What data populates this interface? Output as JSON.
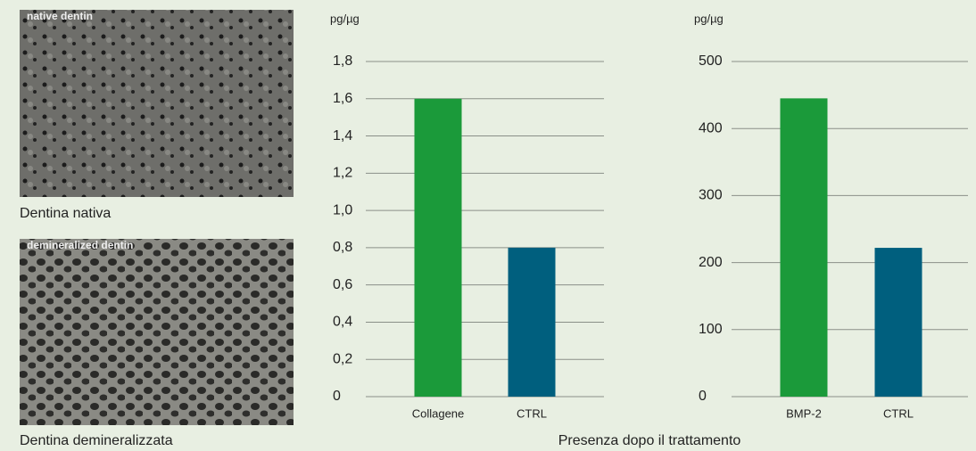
{
  "images": [
    {
      "overlay": "native dentin",
      "caption": "Dentina nativa"
    },
    {
      "overlay": "demineralized dentin",
      "caption": "Dentina demineralizzata"
    }
  ],
  "caption": "Presenza dopo il trattamento",
  "chart_data": [
    {
      "type": "bar",
      "y_label": "pg/µg",
      "categories": [
        "Collagene",
        "CTRL"
      ],
      "values": [
        1.6,
        0.8
      ],
      "colors": [
        "#1b9a3a",
        "#005f7e"
      ],
      "ylim": [
        0,
        1.8
      ],
      "yticks": [
        0,
        {
          "value": 0.2,
          "label": "0,2"
        },
        {
          "value": 0.4,
          "label": "0,4"
        },
        {
          "value": 0.6,
          "label": "0,6"
        },
        {
          "value": 0.8,
          "label": "0,8"
        },
        {
          "value": 1.0,
          "label": "1,0"
        },
        {
          "value": 1.2,
          "label": "1,2"
        },
        {
          "value": 1.4,
          "label": "1,4"
        },
        {
          "value": 1.6,
          "label": "1,6"
        },
        {
          "value": 1.8,
          "label": "1,8"
        }
      ],
      "grid": true
    },
    {
      "type": "bar",
      "y_label": "pg/µg",
      "categories": [
        "BMP-2",
        "CTRL"
      ],
      "values": [
        445,
        222
      ],
      "colors": [
        "#1b9a3a",
        "#005f7e"
      ],
      "ylim": [
        0,
        500
      ],
      "yticks": [
        0,
        100,
        200,
        300,
        400,
        500
      ],
      "grid": true
    }
  ]
}
